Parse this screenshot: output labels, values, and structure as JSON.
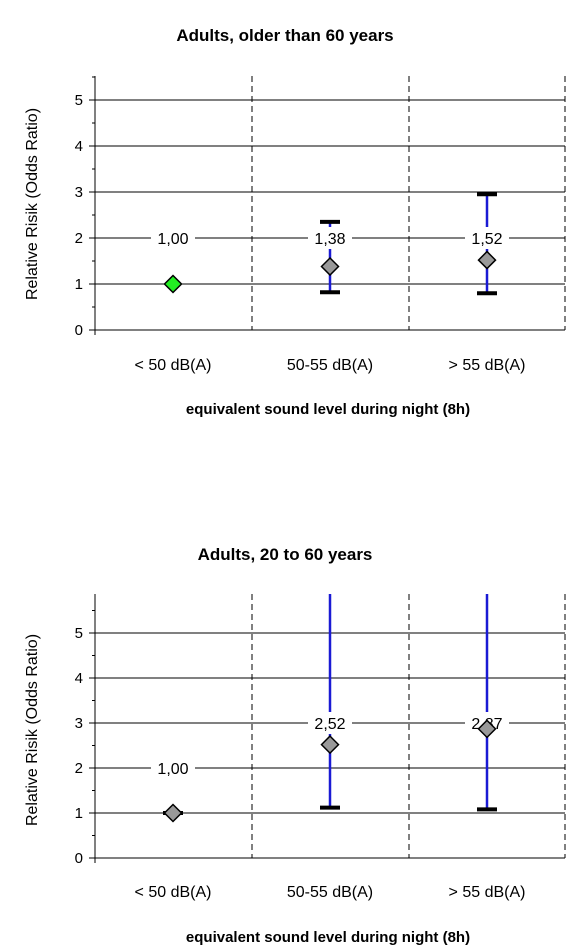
{
  "chart_data": [
    {
      "type": "scatter",
      "title": "Adults, older than 60 years",
      "xlabel": "equivalent sound level during night (8h)",
      "ylabel": "Relative Risik (Odds Ratio)",
      "categories": [
        "< 50 dB(A)",
        "50-55 dB(A)",
        "> 55 dB(A)"
      ],
      "yticks": [
        "0",
        "1",
        "2",
        "3",
        "4",
        "5"
      ],
      "ylim": [
        0,
        5.5
      ],
      "grid": true,
      "series": [
        {
          "values": [
            1.0,
            1.38,
            1.52
          ],
          "lower": [
            1.0,
            0.82,
            0.8
          ],
          "upper": [
            1.0,
            2.35,
            2.95
          ],
          "labels": [
            "1,00",
            "1,38",
            "1,52"
          ],
          "marker_colors": [
            "#22ee22",
            "#999999",
            "#999999"
          ],
          "error_color": "#1a1ad4"
        }
      ]
    },
    {
      "type": "scatter",
      "title": "Adults, 20 to 60 years",
      "xlabel": "equivalent sound level during night (8h)",
      "ylabel": "Relative Risik (Odds Ratio)",
      "categories": [
        "< 50 dB(A)",
        "50-55 dB(A)",
        "> 55 dB(A)"
      ],
      "yticks": [
        "0",
        "1",
        "2",
        "3",
        "4",
        "5"
      ],
      "ylim": [
        0,
        5.5
      ],
      "grid": true,
      "series": [
        {
          "values": [
            1.0,
            2.52,
            2.87
          ],
          "lower": [
            0.97,
            1.12,
            1.08
          ],
          "upper": [
            1.03,
            5.8,
            5.8
          ],
          "labels": [
            "1,00",
            "2,52",
            "2,87"
          ],
          "marker_colors": [
            "#999999",
            "#999999",
            "#999999"
          ],
          "error_color": "#1a1ad4"
        }
      ]
    }
  ]
}
